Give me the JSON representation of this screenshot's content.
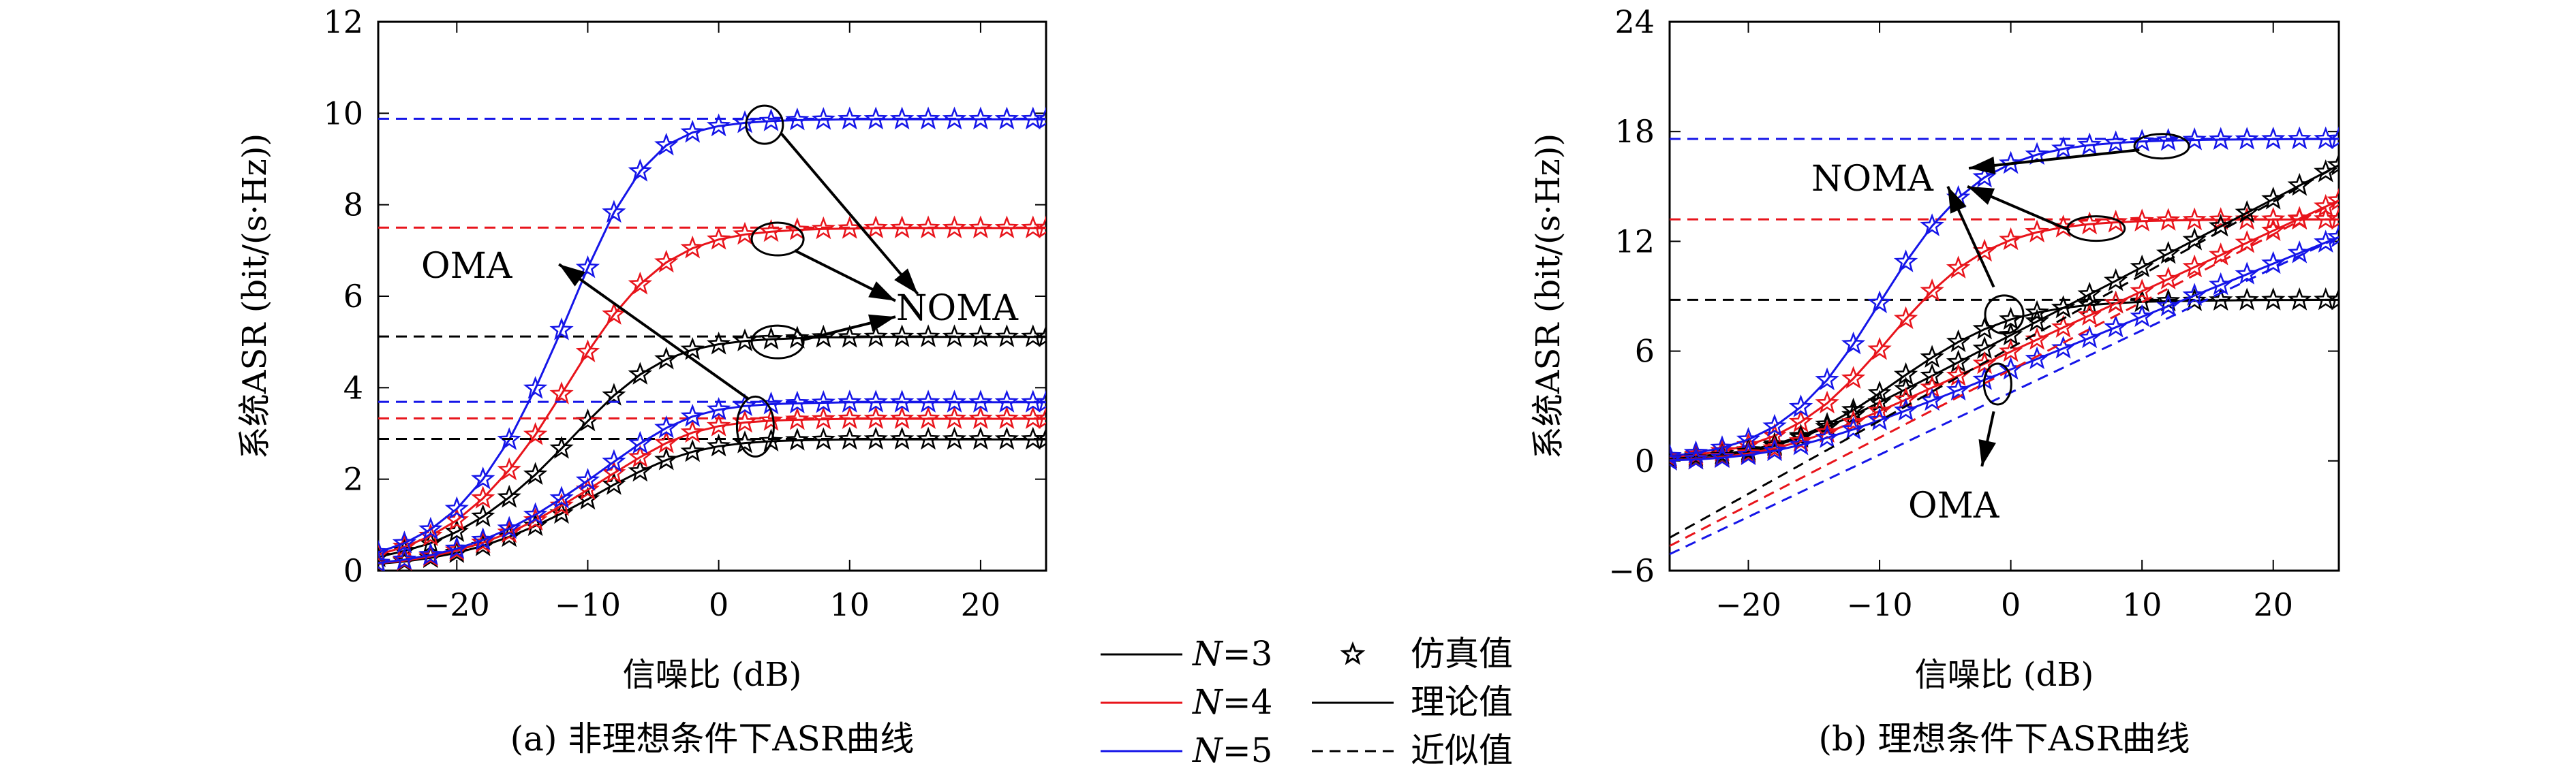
{
  "colors": {
    "N3": "#000000",
    "N4": "#e8141b",
    "N5": "#1515e8"
  },
  "legend": {
    "series": [
      {
        "label_italic": "N",
        "label": "=3",
        "color_key": "N3"
      },
      {
        "label_italic": "N",
        "label": "=4",
        "color_key": "N4"
      },
      {
        "label_italic": "N",
        "label": "=5",
        "color_key": "N5"
      }
    ],
    "styles": [
      {
        "marker": "star-icon",
        "label": "仿真值"
      },
      {
        "line": "solid",
        "label": "理论值"
      },
      {
        "line": "dashed",
        "label": "近似值"
      }
    ]
  },
  "chart_data": [
    {
      "type": "line",
      "caption": "(a) 非理想条件下ASR曲线",
      "xlabel": "信噪比 (dB)",
      "ylabel": "系统ASR (bit/(s·Hz))",
      "xlim": [
        -26,
        25
      ],
      "ylim": [
        0,
        12
      ],
      "xticks": [
        -20,
        -10,
        0,
        10,
        20
      ],
      "xtick_labels": [
        "−20",
        "−10",
        "0",
        "10",
        "20"
      ],
      "yticks": [
        0,
        2,
        4,
        6,
        8,
        10,
        12
      ],
      "ytick_labels": [
        "0",
        "2",
        "4",
        "6",
        "8",
        "10",
        "12"
      ],
      "annotations": [
        "OMA",
        "NOMA"
      ],
      "x": [
        -26,
        -24,
        -22,
        -20,
        -18,
        -16,
        -14,
        -12,
        -10,
        -8,
        -6,
        -4,
        -2,
        0,
        2,
        4,
        6,
        8,
        10,
        12,
        14,
        16,
        18,
        20,
        22,
        24,
        25
      ],
      "series": [
        {
          "name": "N=3 NOMA",
          "color_key": "N3",
          "style": "solid",
          "markers": true,
          "approx": 5.12,
          "values": [
            0.3,
            0.43,
            0.6,
            0.85,
            1.18,
            1.6,
            2.1,
            2.67,
            3.27,
            3.83,
            4.29,
            4.62,
            4.83,
            4.95,
            5.02,
            5.06,
            5.08,
            5.1,
            5.1,
            5.11,
            5.11,
            5.11,
            5.11,
            5.11,
            5.11,
            5.11,
            5.11
          ]
        },
        {
          "name": "N=4 NOMA",
          "color_key": "N4",
          "style": "solid",
          "markers": true,
          "approx": 7.5,
          "values": [
            0.35,
            0.52,
            0.76,
            1.1,
            1.58,
            2.2,
            2.97,
            3.86,
            4.78,
            5.6,
            6.26,
            6.74,
            7.05,
            7.24,
            7.35,
            7.41,
            7.45,
            7.47,
            7.48,
            7.49,
            7.49,
            7.49,
            7.49,
            7.49,
            7.49,
            7.49,
            7.49
          ]
        },
        {
          "name": "N=5 NOMA",
          "color_key": "N5",
          "style": "solid",
          "markers": true,
          "approx": 9.88,
          "values": [
            0.4,
            0.6,
            0.9,
            1.35,
            2.0,
            2.86,
            3.98,
            5.26,
            6.62,
            7.83,
            8.73,
            9.3,
            9.58,
            9.72,
            9.79,
            9.83,
            9.85,
            9.86,
            9.87,
            9.87,
            9.87,
            9.87,
            9.87,
            9.87,
            9.87,
            9.87,
            9.87
          ]
        },
        {
          "name": "N=3 OMA",
          "color_key": "N3",
          "style": "solid",
          "markers": true,
          "approx": 2.88,
          "values": [
            0.15,
            0.2,
            0.28,
            0.39,
            0.54,
            0.74,
            0.98,
            1.25,
            1.56,
            1.88,
            2.17,
            2.42,
            2.6,
            2.72,
            2.79,
            2.83,
            2.85,
            2.86,
            2.87,
            2.87,
            2.87,
            2.87,
            2.87,
            2.87,
            2.87,
            2.87,
            2.87
          ]
        },
        {
          "name": "N=4 OMA",
          "color_key": "N4",
          "style": "solid",
          "markers": true,
          "approx": 3.33,
          "values": [
            0.16,
            0.22,
            0.31,
            0.44,
            0.61,
            0.83,
            1.1,
            1.42,
            1.77,
            2.13,
            2.48,
            2.79,
            3.02,
            3.16,
            3.24,
            3.28,
            3.3,
            3.31,
            3.32,
            3.32,
            3.32,
            3.32,
            3.32,
            3.32,
            3.32,
            3.32,
            3.32
          ]
        },
        {
          "name": "N=5 OMA",
          "color_key": "N5",
          "style": "solid",
          "markers": true,
          "approx": 3.69,
          "values": [
            0.17,
            0.24,
            0.34,
            0.48,
            0.67,
            0.92,
            1.22,
            1.58,
            1.97,
            2.38,
            2.78,
            3.12,
            3.37,
            3.52,
            3.6,
            3.64,
            3.66,
            3.67,
            3.68,
            3.68,
            3.68,
            3.68,
            3.68,
            3.68,
            3.68,
            3.68,
            3.68
          ]
        }
      ]
    },
    {
      "type": "line",
      "caption": "(b) 理想条件下ASR曲线",
      "xlabel": "信噪比 (dB)",
      "ylabel": "系统ASR (bit/(s·Hz))",
      "xlim": [
        -26,
        25
      ],
      "ylim": [
        -6,
        24
      ],
      "xticks": [
        -20,
        -10,
        0,
        10,
        20
      ],
      "xtick_labels": [
        "−20",
        "−10",
        "0",
        "10",
        "20"
      ],
      "yticks": [
        -6,
        0,
        6,
        12,
        18,
        24
      ],
      "ytick_labels": [
        "−6",
        "0",
        "6",
        "12",
        "18",
        "24"
      ],
      "annotations": [
        "NOMA",
        "OMA"
      ],
      "x": [
        -26,
        -24,
        -22,
        -20,
        -18,
        -16,
        -14,
        -12,
        -10,
        -8,
        -6,
        -4,
        -2,
        0,
        2,
        4,
        6,
        8,
        10,
        12,
        14,
        16,
        18,
        20,
        22,
        24,
        25
      ],
      "series": [
        {
          "name": "N=3 NOMA",
          "color_key": "N3",
          "style": "solid",
          "markers": true,
          "approx": 8.8,
          "values": [
            0.15,
            0.24,
            0.37,
            0.58,
            0.9,
            1.35,
            1.98,
            2.77,
            3.7,
            4.7,
            5.65,
            6.5,
            7.2,
            7.73,
            8.1,
            8.36,
            8.52,
            8.62,
            8.69,
            8.73,
            8.75,
            8.77,
            8.78,
            8.79,
            8.79,
            8.8,
            8.8
          ]
        },
        {
          "name": "N=4 NOMA",
          "color_key": "N4",
          "style": "solid",
          "markers": true,
          "approx": 13.2,
          "values": [
            0.2,
            0.33,
            0.53,
            0.86,
            1.37,
            2.12,
            3.15,
            4.5,
            6.08,
            7.76,
            9.28,
            10.53,
            11.45,
            12.08,
            12.5,
            12.77,
            12.94,
            13.04,
            13.1,
            13.14,
            13.16,
            13.18,
            13.19,
            13.19,
            13.2,
            13.2,
            13.2
          ]
        },
        {
          "name": "N=5 NOMA",
          "color_key": "N5",
          "style": "solid",
          "markers": true,
          "approx": 17.6,
          "values": [
            0.26,
            0.43,
            0.71,
            1.16,
            1.88,
            2.94,
            4.42,
            6.38,
            8.63,
            10.87,
            12.84,
            14.38,
            15.5,
            16.25,
            16.74,
            17.06,
            17.26,
            17.38,
            17.46,
            17.51,
            17.54,
            17.56,
            17.57,
            17.58,
            17.59,
            17.59,
            17.6
          ]
        },
        {
          "name": "N=3 OMA",
          "color_key": "N3",
          "style": "solid",
          "markers": true,
          "values": [
            0.05,
            0.12,
            0.25,
            0.48,
            0.82,
            1.28,
            1.85,
            2.5,
            3.2,
            3.92,
            4.65,
            5.39,
            6.13,
            6.87,
            7.62,
            8.36,
            9.1,
            9.84,
            10.59,
            11.33,
            12.07,
            12.82,
            13.56,
            14.3,
            15.05,
            15.79,
            16.16
          ]
        },
        {
          "name": "N=4 OMA",
          "color_key": "N4",
          "style": "solid",
          "markers": true,
          "values": [
            0.04,
            0.1,
            0.21,
            0.4,
            0.68,
            1.07,
            1.55,
            2.11,
            2.72,
            3.35,
            4.0,
            4.65,
            5.31,
            5.97,
            6.63,
            7.29,
            7.95,
            8.61,
            9.27,
            9.93,
            10.59,
            11.25,
            11.92,
            12.58,
            13.24,
            13.9,
            14.23
          ]
        },
        {
          "name": "N=5 OMA",
          "color_key": "N5",
          "style": "solid",
          "markers": true,
          "values": [
            0.03,
            0.08,
            0.17,
            0.32,
            0.55,
            0.87,
            1.26,
            1.72,
            2.22,
            2.75,
            3.3,
            3.86,
            4.43,
            5.0,
            5.57,
            6.15,
            6.72,
            7.3,
            7.88,
            8.46,
            9.04,
            9.62,
            10.2,
            10.78,
            11.36,
            11.94,
            12.23
          ]
        },
        {
          "name": "N=3 OMA 近似值",
          "color_key": "N3",
          "style": "dashed",
          "markers": false,
          "x_pts": [
            -26,
            25
          ],
          "values_pts": [
            -4.2,
            16.16
          ]
        },
        {
          "name": "N=4 OMA 近似值",
          "color_key": "N4",
          "style": "dashed",
          "markers": false,
          "x_pts": [
            -26,
            25
          ],
          "values_pts": [
            -4.65,
            14.23
          ]
        },
        {
          "name": "N=5 OMA 近似值",
          "color_key": "N5",
          "style": "dashed",
          "markers": false,
          "x_pts": [
            -26,
            25
          ],
          "values_pts": [
            -5.1,
            12.23
          ]
        }
      ]
    }
  ]
}
